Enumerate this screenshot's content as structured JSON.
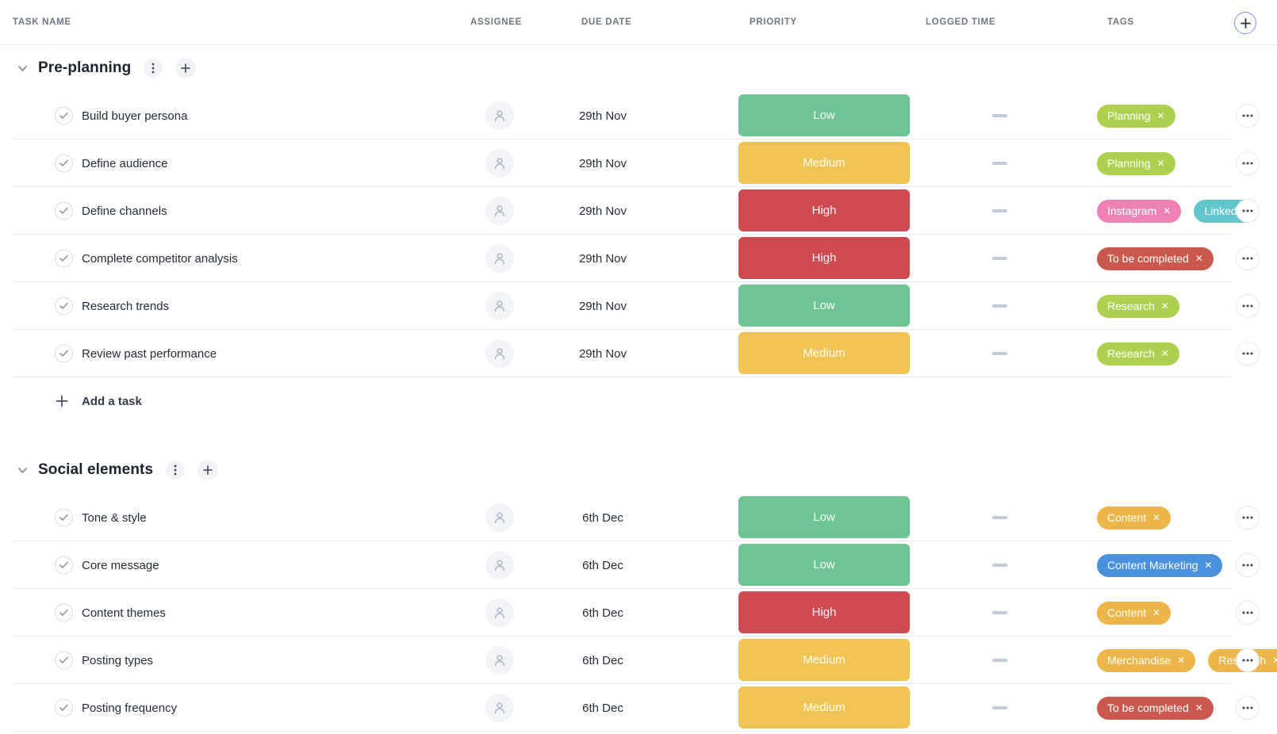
{
  "header": {
    "columns": [
      {
        "label": "TASK NAME"
      },
      {
        "label": "ASSIGNEE"
      },
      {
        "label": "DUE DATE"
      },
      {
        "label": "PRIORITY"
      },
      {
        "label": "LOGGED TIME"
      },
      {
        "label": "TAGS"
      }
    ],
    "add_button_glyph": "+"
  },
  "colors": {
    "priority": {
      "Low": "#6cc593",
      "Medium": "#f0c454",
      "High": "#cf4950"
    },
    "tags": {
      "lime": "#add04e",
      "pink": "#ee82b6",
      "teal": "#63c6cd",
      "red": "#cb584e",
      "amber": "#ecb64b",
      "blue": "#4a92de"
    },
    "divider": "#e8ebef",
    "dash": "#c2cada",
    "add_ring": "#7e90f0"
  },
  "icons": {
    "tag_remove_glyph": "✕"
  },
  "sections": [
    {
      "title": "Pre-planning",
      "add_task_label": "Add a task",
      "tasks": [
        {
          "name": "Build buyer persona",
          "due": "29th Nov",
          "priority": "Low",
          "tags": [
            {
              "label": "Planning",
              "color": "lime"
            }
          ]
        },
        {
          "name": "Define audience",
          "due": "29th Nov",
          "priority": "Medium",
          "tags": [
            {
              "label": "Planning",
              "color": "lime"
            }
          ]
        },
        {
          "name": "Define channels",
          "due": "29th Nov",
          "priority": "High",
          "tags": [
            {
              "label": "Instagram",
              "color": "pink"
            },
            {
              "label": "LinkedIn",
              "color": "teal",
              "clipped": true
            }
          ]
        },
        {
          "name": "Complete competitor analysis",
          "due": "29th Nov",
          "priority": "High",
          "tags": [
            {
              "label": "To be completed",
              "color": "red"
            }
          ]
        },
        {
          "name": "Research trends",
          "due": "29th Nov",
          "priority": "Low",
          "tags": [
            {
              "label": "Research",
              "color": "lime"
            }
          ]
        },
        {
          "name": "Review past performance",
          "due": "29th Nov",
          "priority": "Medium",
          "tags": [
            {
              "label": "Research",
              "color": "lime"
            }
          ]
        }
      ]
    },
    {
      "title": "Social elements",
      "tasks": [
        {
          "name": "Tone & style",
          "due": "6th Dec",
          "priority": "Low",
          "tags": [
            {
              "label": "Content",
              "color": "amber"
            }
          ]
        },
        {
          "name": "Core message",
          "due": "6th Dec",
          "priority": "Low",
          "tags": [
            {
              "label": "Content Marketing",
              "color": "blue"
            }
          ]
        },
        {
          "name": "Content themes",
          "due": "6th Dec",
          "priority": "High",
          "tags": [
            {
              "label": "Content",
              "color": "amber"
            }
          ]
        },
        {
          "name": "Posting types",
          "due": "6th Dec",
          "priority": "Medium",
          "tags": [
            {
              "label": "Merchandise",
              "color": "amber"
            },
            {
              "label": "Research",
              "color": "amber"
            }
          ]
        },
        {
          "name": "Posting frequency",
          "due": "6th Dec",
          "priority": "Medium",
          "tags": [
            {
              "label": "To be completed",
              "color": "red"
            }
          ]
        }
      ]
    }
  ]
}
